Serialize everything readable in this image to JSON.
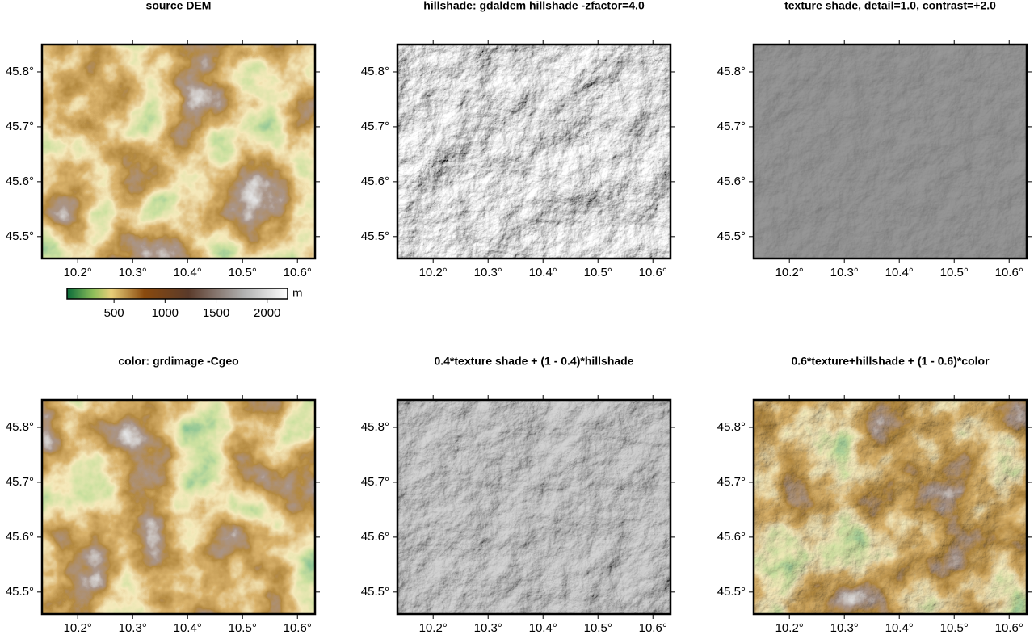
{
  "panels": [
    {
      "title": "source DEM",
      "xlim": [
        10.135,
        10.632
      ],
      "ylim": [
        45.46,
        45.85
      ],
      "xticks": [
        {
          "value": 10.2,
          "label": "10.2°"
        },
        {
          "value": 10.3,
          "label": "10.3°"
        },
        {
          "value": 10.4,
          "label": "10.4°"
        },
        {
          "value": 10.5,
          "label": "10.5°"
        },
        {
          "value": 10.6,
          "label": "10.6°"
        }
      ],
      "yticks": [
        {
          "value": 45.5,
          "label": "45.5°"
        },
        {
          "value": 45.6,
          "label": "45.6°"
        },
        {
          "value": 45.7,
          "label": "45.7°"
        },
        {
          "value": 45.8,
          "label": "45.8°"
        }
      ]
    },
    {
      "title": "hillshade: gdaldem hillshade -zfactor=4.0",
      "xlim": [
        10.135,
        10.632
      ],
      "ylim": [
        45.46,
        45.85
      ],
      "xticks": [
        {
          "value": 10.2,
          "label": "10.2°"
        },
        {
          "value": 10.3,
          "label": "10.3°"
        },
        {
          "value": 10.4,
          "label": "10.4°"
        },
        {
          "value": 10.5,
          "label": "10.5°"
        },
        {
          "value": 10.6,
          "label": "10.6°"
        }
      ],
      "yticks": [
        {
          "value": 45.5,
          "label": "45.5°"
        },
        {
          "value": 45.6,
          "label": "45.6°"
        },
        {
          "value": 45.7,
          "label": "45.7°"
        },
        {
          "value": 45.8,
          "label": "45.8°"
        }
      ]
    },
    {
      "title": "texture shade, detail=1.0, contrast=+2.0",
      "xlim": [
        10.135,
        10.632
      ],
      "ylim": [
        45.46,
        45.85
      ],
      "xticks": [
        {
          "value": 10.2,
          "label": "10.2°"
        },
        {
          "value": 10.3,
          "label": "10.3°"
        },
        {
          "value": 10.4,
          "label": "10.4°"
        },
        {
          "value": 10.5,
          "label": "10.5°"
        },
        {
          "value": 10.6,
          "label": "10.6°"
        }
      ],
      "yticks": [
        {
          "value": 45.5,
          "label": "45.5°"
        },
        {
          "value": 45.6,
          "label": "45.6°"
        },
        {
          "value": 45.7,
          "label": "45.7°"
        },
        {
          "value": 45.8,
          "label": "45.8°"
        }
      ]
    },
    {
      "title": "color: grdimage -Cgeo",
      "xlim": [
        10.135,
        10.632
      ],
      "ylim": [
        45.46,
        45.85
      ],
      "xticks": [
        {
          "value": 10.2,
          "label": "10.2°"
        },
        {
          "value": 10.3,
          "label": "10.3°"
        },
        {
          "value": 10.4,
          "label": "10.4°"
        },
        {
          "value": 10.5,
          "label": "10.5°"
        },
        {
          "value": 10.6,
          "label": "10.6°"
        }
      ],
      "yticks": [
        {
          "value": 45.5,
          "label": "45.5°"
        },
        {
          "value": 45.6,
          "label": "45.6°"
        },
        {
          "value": 45.7,
          "label": "45.7°"
        },
        {
          "value": 45.8,
          "label": "45.8°"
        }
      ]
    },
    {
      "title": "0.4*texture shade + (1 - 0.4)*hillshade",
      "xlim": [
        10.135,
        10.632
      ],
      "ylim": [
        45.46,
        45.85
      ],
      "xticks": [
        {
          "value": 10.2,
          "label": "10.2°"
        },
        {
          "value": 10.3,
          "label": "10.3°"
        },
        {
          "value": 10.4,
          "label": "10.4°"
        },
        {
          "value": 10.5,
          "label": "10.5°"
        },
        {
          "value": 10.6,
          "label": "10.6°"
        }
      ],
      "yticks": [
        {
          "value": 45.5,
          "label": "45.5°"
        },
        {
          "value": 45.6,
          "label": "45.6°"
        },
        {
          "value": 45.7,
          "label": "45.7°"
        },
        {
          "value": 45.8,
          "label": "45.8°"
        }
      ]
    },
    {
      "title": "0.6*texture+hillshade + (1 - 0.6)*color",
      "xlim": [
        10.135,
        10.632
      ],
      "ylim": [
        45.46,
        45.85
      ],
      "xticks": [
        {
          "value": 10.2,
          "label": "10.2°"
        },
        {
          "value": 10.3,
          "label": "10.3°"
        },
        {
          "value": 10.4,
          "label": "10.4°"
        },
        {
          "value": 10.5,
          "label": "10.5°"
        },
        {
          "value": 10.6,
          "label": "10.6°"
        }
      ],
      "yticks": [
        {
          "value": 45.5,
          "label": "45.5°"
        },
        {
          "value": 45.6,
          "label": "45.6°"
        },
        {
          "value": 45.7,
          "label": "45.7°"
        },
        {
          "value": 45.8,
          "label": "45.8°"
        }
      ]
    }
  ],
  "colorbar": {
    "lim": [
      40,
      2200
    ],
    "ticks": [
      500,
      1000,
      1500,
      2000
    ],
    "label": "m"
  }
}
